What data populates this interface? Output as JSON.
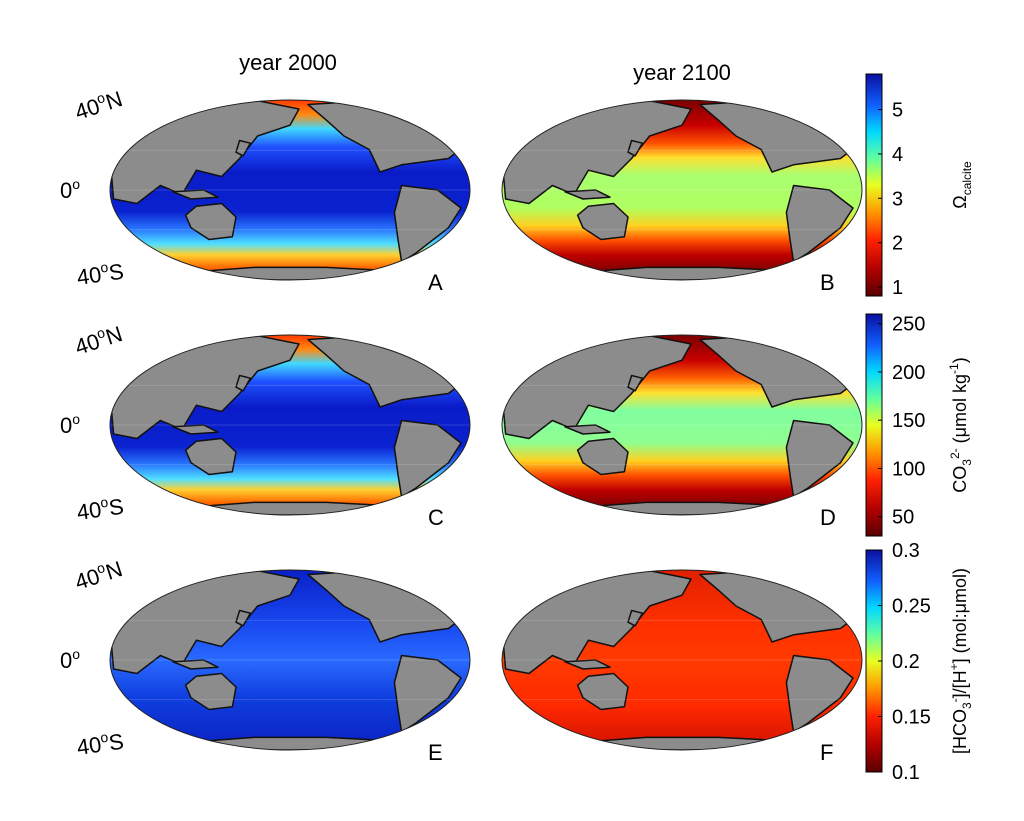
{
  "columns": [
    {
      "title": "year 2000"
    },
    {
      "title": "year 2100"
    }
  ],
  "latitude_labels": {
    "north": "40",
    "equator": "0",
    "south": "40",
    "north_suffix": "N",
    "south_suffix": "S",
    "degree_mark": "o"
  },
  "panels": [
    {
      "letter": "A",
      "row": 0,
      "col": 0,
      "style": "omega_2000"
    },
    {
      "letter": "B",
      "row": 0,
      "col": 1,
      "style": "omega_2100"
    },
    {
      "letter": "C",
      "row": 1,
      "col": 0,
      "style": "omega_2000"
    },
    {
      "letter": "D",
      "row": 1,
      "col": 1,
      "style": "co3_2100"
    },
    {
      "letter": "E",
      "row": 2,
      "col": 0,
      "style": "ratio_2000"
    },
    {
      "letter": "F",
      "row": 2,
      "col": 1,
      "style": "ratio_2100"
    }
  ],
  "colorbars": [
    {
      "label_main": "Ω",
      "label_sub": "calcite",
      "ticks": [
        "5",
        "4",
        "3",
        "2",
        "1"
      ],
      "range": [
        0.8,
        5.8
      ]
    },
    {
      "label_main": "CO",
      "label_sub": "3",
      "label_sup": "2-",
      "label_rest": " (μmol kg",
      "label_sup2": "-1",
      "label_end": ")",
      "ticks": [
        "250",
        "200",
        "150",
        "100",
        "50"
      ],
      "range": [
        30,
        260
      ]
    },
    {
      "label_main": "[HCO",
      "label_sub": "3",
      "label_sup": "-",
      "label_rest": "]/[H",
      "label_sup2": "+",
      "label_end": "] (mol:μmol)",
      "ticks": [
        "0.3",
        "0.25",
        "0.2",
        "0.15",
        "0.1"
      ],
      "range": [
        0.1,
        0.3
      ]
    }
  ],
  "colors": {
    "land": "#8c8c8c",
    "coast": "#111111",
    "deep_blue": "#0a1fbf",
    "dark_red": "#6a0000"
  }
}
